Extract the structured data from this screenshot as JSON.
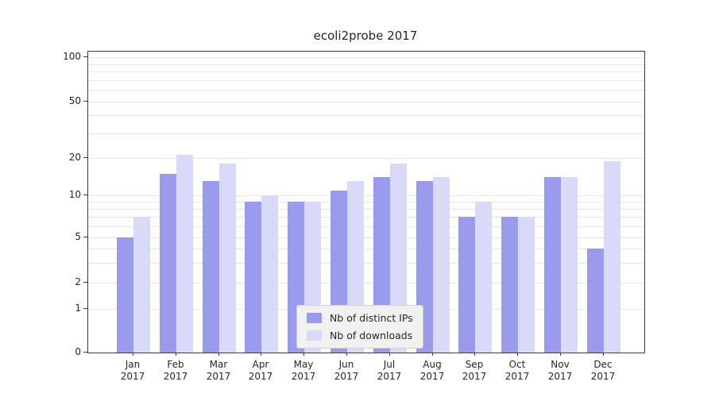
{
  "chart_data": {
    "type": "bar",
    "title": "ecoli2probe 2017",
    "xlabel": "",
    "ylabel": "",
    "yscale": "symlog",
    "grid": true,
    "yticks": [
      100,
      50,
      20,
      10,
      5,
      2,
      1,
      0
    ],
    "grid_values": [
      1,
      2,
      3,
      4,
      5,
      6,
      7,
      8,
      9,
      10,
      20,
      30,
      40,
      50,
      60,
      70,
      80,
      90,
      100
    ],
    "categories": [
      "Jan",
      "Feb",
      "Mar",
      "Apr",
      "May",
      "Jun",
      "Jul",
      "Aug",
      "Sep",
      "Oct",
      "Nov",
      "Dec"
    ],
    "year": "2017",
    "series": [
      {
        "name": "Nb of distinct IPs",
        "color": "#9b9bee",
        "values": [
          5,
          15,
          13,
          9,
          9,
          11,
          14,
          13,
          7,
          7,
          14,
          4
        ]
      },
      {
        "name": "Nb of downloads",
        "color": "#d9d9f8",
        "values": [
          7,
          21,
          18,
          10,
          9,
          13,
          18,
          14,
          9,
          7,
          14,
          19
        ]
      }
    ],
    "legend_position": "lower center",
    "ylim_top": 105
  }
}
